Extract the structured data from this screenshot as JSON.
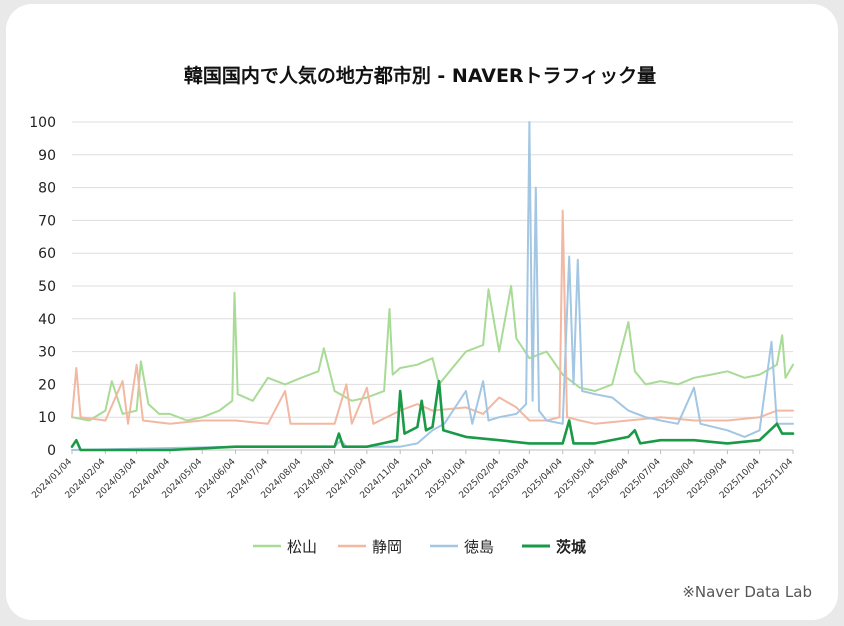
{
  "chart_data": {
    "type": "line",
    "title": "韓国国内で人気の地方都市別 - NAVERトラフィック量",
    "source": "※Naver Data Lab",
    "ylim": [
      0,
      100
    ],
    "yticks": [
      0,
      10,
      20,
      30,
      40,
      50,
      60,
      70,
      80,
      90,
      100
    ],
    "xlim": [
      "2024-01-04",
      "2025-11-04"
    ],
    "xticks": [
      "2024/01/04",
      "2024/02/04",
      "2024/03/04",
      "2024/04/04",
      "2024/05/04",
      "2024/06/04",
      "2024/07/04",
      "2024/08/04",
      "2024/09/04",
      "2024/10/04",
      "2024/11/04",
      "2024/12/04",
      "2025/01/04",
      "2025/02/04",
      "2025/03/04",
      "2025/04/04",
      "2025/05/04",
      "2025/06/04",
      "2025/07/04",
      "2025/08/04",
      "2025/09/04",
      "2025/10/04",
      "2025/11/04"
    ],
    "grid": true,
    "legend_position": "bottom",
    "series": [
      {
        "name": "松山",
        "color": "#a8db95",
        "stroke_width": 2,
        "bold": false,
        "points": [
          [
            "2024-01-04",
            10
          ],
          [
            "2024-01-20",
            9
          ],
          [
            "2024-02-04",
            12
          ],
          [
            "2024-02-10",
            21
          ],
          [
            "2024-02-20",
            11
          ],
          [
            "2024-03-04",
            12
          ],
          [
            "2024-03-08",
            27
          ],
          [
            "2024-03-15",
            14
          ],
          [
            "2024-03-25",
            11
          ],
          [
            "2024-04-04",
            11
          ],
          [
            "2024-04-20",
            9
          ],
          [
            "2024-05-04",
            10
          ],
          [
            "2024-05-20",
            12
          ],
          [
            "2024-06-01",
            15
          ],
          [
            "2024-06-03",
            48
          ],
          [
            "2024-06-06",
            17
          ],
          [
            "2024-06-20",
            15
          ],
          [
            "2024-07-04",
            22
          ],
          [
            "2024-07-20",
            20
          ],
          [
            "2024-08-04",
            22
          ],
          [
            "2024-08-20",
            24
          ],
          [
            "2024-08-25",
            31
          ],
          [
            "2024-09-04",
            18
          ],
          [
            "2024-09-20",
            15
          ],
          [
            "2024-10-04",
            16
          ],
          [
            "2024-10-20",
            18
          ],
          [
            "2024-10-25",
            43
          ],
          [
            "2024-10-28",
            23
          ],
          [
            "2024-11-04",
            25
          ],
          [
            "2024-11-20",
            26
          ],
          [
            "2024-12-04",
            28
          ],
          [
            "2024-12-10",
            20
          ],
          [
            "2024-12-20",
            24
          ],
          [
            "2025-01-04",
            30
          ],
          [
            "2025-01-20",
            32
          ],
          [
            "2025-01-25",
            49
          ],
          [
            "2025-02-04",
            30
          ],
          [
            "2025-02-15",
            50
          ],
          [
            "2025-02-20",
            34
          ],
          [
            "2025-03-04",
            28
          ],
          [
            "2025-03-20",
            30
          ],
          [
            "2025-04-04",
            23
          ],
          [
            "2025-04-20",
            19
          ],
          [
            "2025-05-04",
            18
          ],
          [
            "2025-05-20",
            20
          ],
          [
            "2025-06-04",
            39
          ],
          [
            "2025-06-10",
            24
          ],
          [
            "2025-06-20",
            20
          ],
          [
            "2025-07-04",
            21
          ],
          [
            "2025-07-20",
            20
          ],
          [
            "2025-08-04",
            22
          ],
          [
            "2025-08-20",
            23
          ],
          [
            "2025-09-04",
            24
          ],
          [
            "2025-09-20",
            22
          ],
          [
            "2025-10-04",
            23
          ],
          [
            "2025-10-20",
            26
          ],
          [
            "2025-10-25",
            35
          ],
          [
            "2025-10-28",
            22
          ],
          [
            "2025-11-04",
            26
          ]
        ]
      },
      {
        "name": "静岡",
        "color": "#f2b8a2",
        "stroke_width": 2,
        "bold": false,
        "points": [
          [
            "2024-01-04",
            10
          ],
          [
            "2024-01-08",
            25
          ],
          [
            "2024-01-12",
            10
          ],
          [
            "2024-02-04",
            9
          ],
          [
            "2024-02-20",
            21
          ],
          [
            "2024-02-25",
            8
          ],
          [
            "2024-03-04",
            26
          ],
          [
            "2024-03-10",
            9
          ],
          [
            "2024-04-04",
            8
          ],
          [
            "2024-05-04",
            9
          ],
          [
            "2024-06-04",
            9
          ],
          [
            "2024-07-04",
            8
          ],
          [
            "2024-07-20",
            18
          ],
          [
            "2024-07-25",
            8
          ],
          [
            "2024-08-04",
            8
          ],
          [
            "2024-09-04",
            8
          ],
          [
            "2024-09-15",
            20
          ],
          [
            "2024-09-20",
            8
          ],
          [
            "2024-10-04",
            19
          ],
          [
            "2024-10-10",
            8
          ],
          [
            "2024-11-04",
            12
          ],
          [
            "2024-11-20",
            14
          ],
          [
            "2024-12-04",
            12
          ],
          [
            "2025-01-04",
            13
          ],
          [
            "2025-01-20",
            11
          ],
          [
            "2025-02-04",
            16
          ],
          [
            "2025-02-20",
            13
          ],
          [
            "2025-03-04",
            9
          ],
          [
            "2025-03-20",
            9
          ],
          [
            "2025-04-01",
            10
          ],
          [
            "2025-04-04",
            73
          ],
          [
            "2025-04-08",
            10
          ],
          [
            "2025-04-20",
            9
          ],
          [
            "2025-05-04",
            8
          ],
          [
            "2025-06-04",
            9
          ],
          [
            "2025-07-04",
            10
          ],
          [
            "2025-08-04",
            9
          ],
          [
            "2025-09-04",
            9
          ],
          [
            "2025-10-04",
            10
          ],
          [
            "2025-10-20",
            12
          ],
          [
            "2025-11-04",
            12
          ]
        ]
      },
      {
        "name": "徳島",
        "color": "#a3c6e3",
        "stroke_width": 2,
        "bold": false,
        "points": [
          [
            "2024-01-04",
            0
          ],
          [
            "2024-06-04",
            1
          ],
          [
            "2024-09-04",
            1
          ],
          [
            "2024-09-10",
            3
          ],
          [
            "2024-09-15",
            1
          ],
          [
            "2024-11-04",
            1
          ],
          [
            "2024-11-20",
            2
          ],
          [
            "2024-12-04",
            6
          ],
          [
            "2024-12-15",
            8
          ],
          [
            "2025-01-04",
            18
          ],
          [
            "2025-01-10",
            8
          ],
          [
            "2025-01-20",
            21
          ],
          [
            "2025-01-25",
            9
          ],
          [
            "2025-02-04",
            10
          ],
          [
            "2025-02-20",
            11
          ],
          [
            "2025-03-01",
            14
          ],
          [
            "2025-03-04",
            100
          ],
          [
            "2025-03-07",
            15
          ],
          [
            "2025-03-10",
            80
          ],
          [
            "2025-03-13",
            12
          ],
          [
            "2025-03-20",
            9
          ],
          [
            "2025-04-04",
            8
          ],
          [
            "2025-04-10",
            59
          ],
          [
            "2025-04-14",
            20
          ],
          [
            "2025-04-18",
            58
          ],
          [
            "2025-04-22",
            18
          ],
          [
            "2025-05-04",
            17
          ],
          [
            "2025-05-20",
            16
          ],
          [
            "2025-06-04",
            12
          ],
          [
            "2025-06-20",
            10
          ],
          [
            "2025-07-04",
            9
          ],
          [
            "2025-07-20",
            8
          ],
          [
            "2025-08-04",
            19
          ],
          [
            "2025-08-10",
            8
          ],
          [
            "2025-09-04",
            6
          ],
          [
            "2025-09-20",
            4
          ],
          [
            "2025-10-04",
            6
          ],
          [
            "2025-10-15",
            33
          ],
          [
            "2025-10-20",
            8
          ],
          [
            "2025-11-04",
            8
          ]
        ]
      },
      {
        "name": "茨城",
        "color": "#1a9a47",
        "stroke_width": 2.6,
        "bold": true,
        "points": [
          [
            "2024-01-04",
            1
          ],
          [
            "2024-01-08",
            3
          ],
          [
            "2024-01-12",
            0
          ],
          [
            "2024-02-04",
            0
          ],
          [
            "2024-04-04",
            0
          ],
          [
            "2024-06-04",
            1
          ],
          [
            "2024-08-04",
            1
          ],
          [
            "2024-09-04",
            1
          ],
          [
            "2024-09-08",
            5
          ],
          [
            "2024-09-12",
            1
          ],
          [
            "2024-10-04",
            1
          ],
          [
            "2024-11-01",
            3
          ],
          [
            "2024-11-04",
            18
          ],
          [
            "2024-11-08",
            5
          ],
          [
            "2024-11-20",
            7
          ],
          [
            "2024-11-24",
            15
          ],
          [
            "2024-11-28",
            6
          ],
          [
            "2024-12-04",
            7
          ],
          [
            "2024-12-10",
            21
          ],
          [
            "2024-12-14",
            6
          ],
          [
            "2025-01-04",
            4
          ],
          [
            "2025-02-04",
            3
          ],
          [
            "2025-03-04",
            2
          ],
          [
            "2025-04-04",
            2
          ],
          [
            "2025-04-10",
            9
          ],
          [
            "2025-04-14",
            2
          ],
          [
            "2025-05-04",
            2
          ],
          [
            "2025-06-04",
            4
          ],
          [
            "2025-06-10",
            6
          ],
          [
            "2025-06-15",
            2
          ],
          [
            "2025-07-04",
            3
          ],
          [
            "2025-08-04",
            3
          ],
          [
            "2025-09-04",
            2
          ],
          [
            "2025-10-04",
            3
          ],
          [
            "2025-10-20",
            8
          ],
          [
            "2025-10-25",
            5
          ],
          [
            "2025-11-04",
            5
          ]
        ]
      }
    ]
  }
}
